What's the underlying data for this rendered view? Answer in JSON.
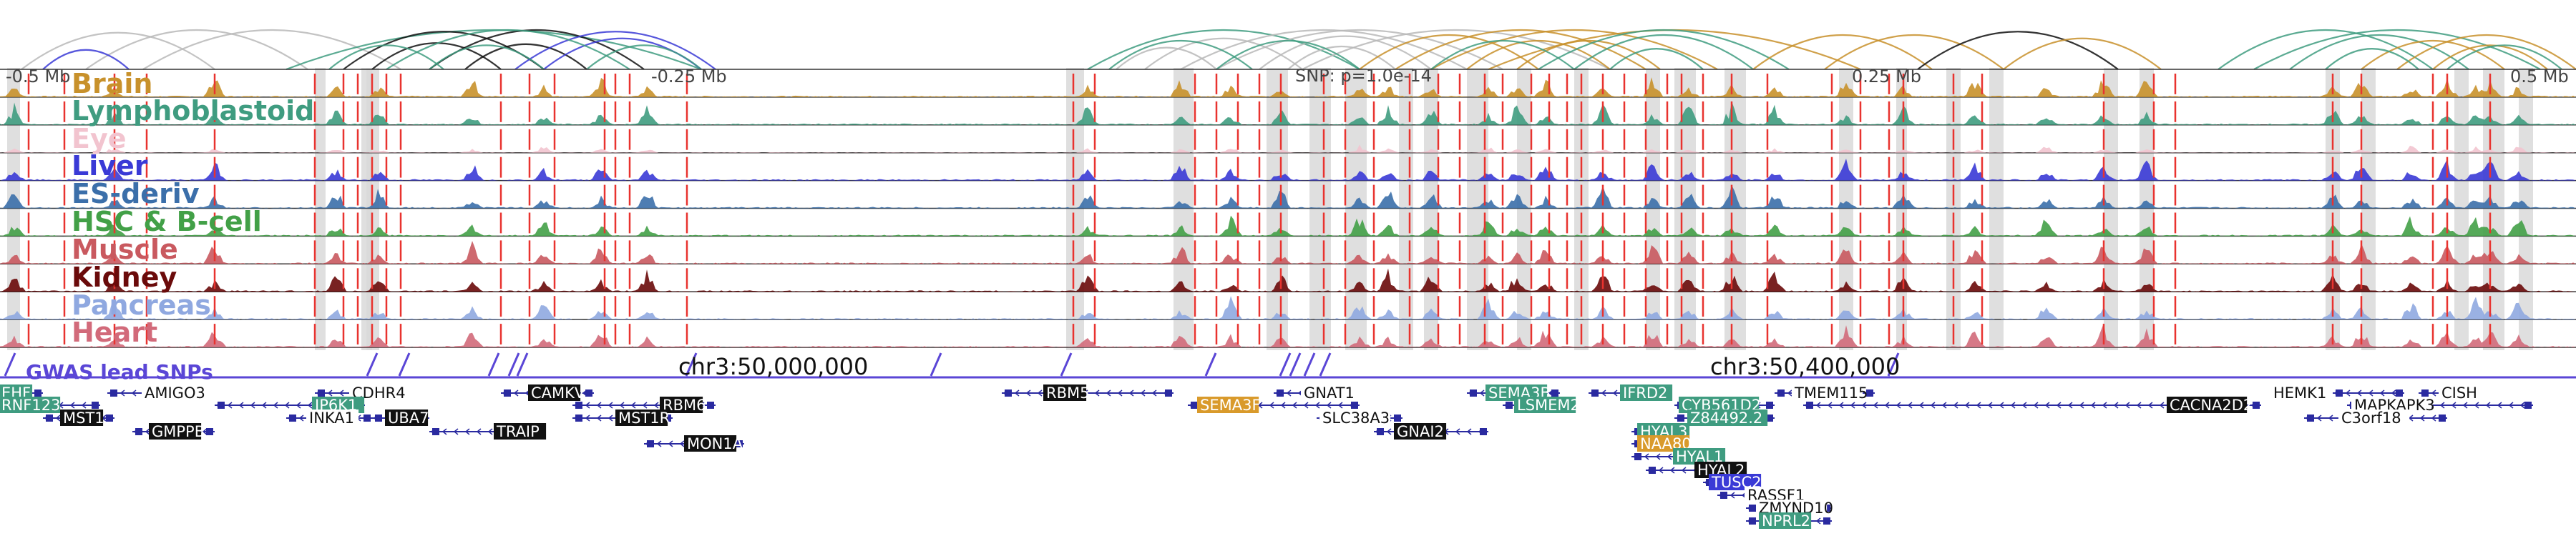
{
  "axis": {
    "left_label": "-0.5 Mb",
    "mid_left_label": "-0.25 Mb",
    "center_label": "SNP: p=1.0e-14",
    "mid_right_label": "0.25 Mb",
    "right_label": "0.5 Mb"
  },
  "tracks": [
    {
      "name": "Brain",
      "color": "#c8912b"
    },
    {
      "name": "Lymphoblastoid",
      "color": "#3f9c80"
    },
    {
      "name": "Eye",
      "color": "#f2c4cf"
    },
    {
      "name": "Liver",
      "color": "#3a3ad6"
    },
    {
      "name": "ES-deriv",
      "color": "#3b6faa"
    },
    {
      "name": "HSC & B-cell",
      "color": "#42a047"
    },
    {
      "name": "Muscle",
      "color": "#c9595f"
    },
    {
      "name": "Kidney",
      "color": "#6a0a0a"
    },
    {
      "name": "Pancreas",
      "color": "#8fa8e0"
    },
    {
      "name": "Heart",
      "color": "#d26a7a"
    }
  ],
  "gwas": {
    "label": "GWAS lead SNPs",
    "color": "#5a46d6",
    "coord_left": "chr3:50,000,000",
    "coord_right": "chr3:50,400,000"
  },
  "genes": [
    {
      "name": "EHF",
      "style": "green"
    },
    {
      "name": "RNF123",
      "style": "green"
    },
    {
      "name": "MST1",
      "style": "black"
    },
    {
      "name": "AMIGO3",
      "style": "plain"
    },
    {
      "name": "GMPPB",
      "style": "black"
    },
    {
      "name": "CDHR4",
      "style": "plain"
    },
    {
      "name": "IP6K1",
      "style": "green"
    },
    {
      "name": "INKA1",
      "style": "plain"
    },
    {
      "name": "UBA7",
      "style": "black"
    },
    {
      "name": "TRAIP",
      "style": "black"
    },
    {
      "name": "CAMKV",
      "style": "black"
    },
    {
      "name": "RBM6",
      "style": "black"
    },
    {
      "name": "MST1R",
      "style": "black"
    },
    {
      "name": "MON1A",
      "style": "black"
    },
    {
      "name": "RBM5",
      "style": "black"
    },
    {
      "name": "SEMA3F",
      "style": "orange"
    },
    {
      "name": "GNAT1",
      "style": "plain"
    },
    {
      "name": "SLC38A3",
      "style": "plain"
    },
    {
      "name": "GNAI2",
      "style": "black"
    },
    {
      "name": "SEMA3B",
      "style": "green"
    },
    {
      "name": "LSMEM2",
      "style": "green"
    },
    {
      "name": "IFRD2",
      "style": "green"
    },
    {
      "name": "HYAL3",
      "style": "green"
    },
    {
      "name": "NAA80",
      "style": "orange"
    },
    {
      "name": "HYAL1",
      "style": "green"
    },
    {
      "name": "HYAL2",
      "style": "black"
    },
    {
      "name": "TUSC2",
      "style": "blue"
    },
    {
      "name": "RASSF1",
      "style": "plain"
    },
    {
      "name": "ZMYND10",
      "style": "plain"
    },
    {
      "name": "NPRL2",
      "style": "green"
    },
    {
      "name": "CYB561D2",
      "style": "green"
    },
    {
      "name": "Z84492.2",
      "style": "green"
    },
    {
      "name": "TMEM115",
      "style": "plain"
    },
    {
      "name": "CACNA2D2",
      "style": "black"
    },
    {
      "name": "HEMK1",
      "style": "plain"
    },
    {
      "name": "CISH",
      "style": "plain"
    },
    {
      "name": "MAPKAPK3",
      "style": "plain"
    },
    {
      "name": "C3orf18",
      "style": "plain"
    }
  ],
  "colors": {
    "snp_line": "#e8332f",
    "arc_gray": "#b8b8b8",
    "arc_black": "#111111",
    "arc_green": "#3f9c80",
    "arc_orange": "#c8912b",
    "arc_blue": "#3a3ad6",
    "gene_line": "#2a2aa0",
    "highlight": "#d9d9d9"
  }
}
